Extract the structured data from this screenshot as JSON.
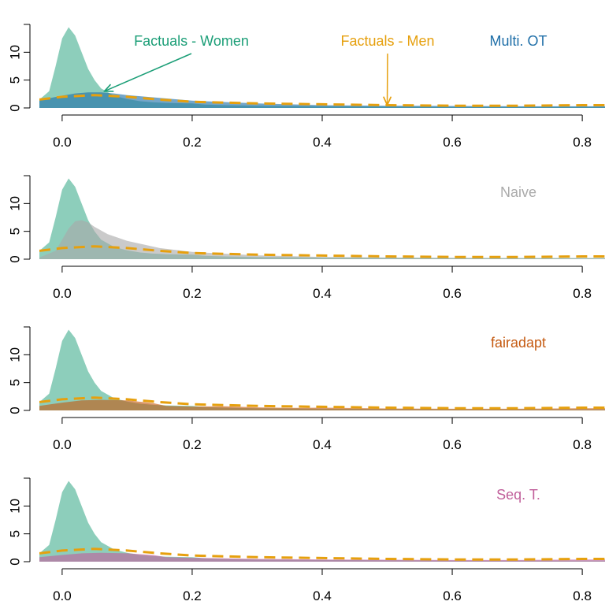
{
  "colors": {
    "women": "#1b9e77",
    "men": "#e6a00e",
    "multi_ot": "#1f6fa8",
    "naive": "#aaaaaa",
    "fairadapt": "#c55a11",
    "seq_t": "#c1609b"
  },
  "chart_data": [
    {
      "type": "area",
      "method_label": "Multi. OT",
      "method_color": "#1f6fa8",
      "x_ticks": [
        "0.0",
        "0.2",
        "0.4",
        "0.6",
        "0.8"
      ],
      "y_ticks": [
        "0",
        "5",
        "10"
      ],
      "xlim": [
        -0.035,
        0.835
      ],
      "ylim": [
        0,
        15
      ],
      "annotations": [
        {
          "text": "Factuals - Women",
          "color": "#1b9e77",
          "target": [
            0.065,
            3
          ]
        },
        {
          "text": "Factuals - Men",
          "color": "#e6a00e",
          "target": [
            0.5,
            0.5
          ]
        }
      ],
      "series": [
        {
          "role": "factual_women",
          "x": [
            -0.035,
            -0.02,
            -0.01,
            0.0,
            0.01,
            0.02,
            0.03,
            0.04,
            0.05,
            0.06,
            0.08,
            0.1,
            0.12,
            0.14,
            0.16,
            0.18,
            0.2,
            0.22,
            0.25,
            0.3,
            0.4,
            0.5,
            0.6,
            0.7,
            0.8,
            0.835
          ],
          "y": [
            1.5,
            3.0,
            7.5,
            12.5,
            14.5,
            13.0,
            10.0,
            7.0,
            5.0,
            3.5,
            2.2,
            1.6,
            1.2,
            1.0,
            0.9,
            0.85,
            0.8,
            0.6,
            0.5,
            0.4,
            0.3,
            0.25,
            0.2,
            0.2,
            0.2,
            0.2
          ]
        },
        {
          "role": "factual_men",
          "x": [
            -0.035,
            0.0,
            0.05,
            0.1,
            0.15,
            0.2,
            0.3,
            0.4,
            0.5,
            0.6,
            0.7,
            0.8,
            0.835
          ],
          "y": [
            1.5,
            2.0,
            2.3,
            2.0,
            1.5,
            1.1,
            0.8,
            0.65,
            0.5,
            0.4,
            0.4,
            0.5,
            0.5
          ]
        },
        {
          "role": "counterfactual",
          "x": [
            -0.035,
            0.0,
            0.02,
            0.04,
            0.06,
            0.08,
            0.1,
            0.15,
            0.2,
            0.3,
            0.4,
            0.5,
            0.6,
            0.7,
            0.8,
            0.835
          ],
          "y": [
            1.4,
            2.2,
            2.6,
            2.8,
            2.8,
            2.6,
            2.3,
            1.8,
            1.3,
            0.8,
            0.5,
            0.4,
            0.35,
            0.3,
            0.3,
            0.3
          ]
        }
      ]
    },
    {
      "type": "area",
      "method_label": "Naive",
      "method_color": "#aaaaaa",
      "x_ticks": [
        "0.0",
        "0.2",
        "0.4",
        "0.6",
        "0.8"
      ],
      "y_ticks": [
        "0",
        "5",
        "10"
      ],
      "xlim": [
        -0.035,
        0.835
      ],
      "ylim": [
        0,
        15
      ],
      "series": [
        {
          "role": "factual_women",
          "x": [
            -0.035,
            -0.02,
            -0.01,
            0.0,
            0.01,
            0.02,
            0.03,
            0.04,
            0.05,
            0.06,
            0.08,
            0.1,
            0.12,
            0.14,
            0.16,
            0.18,
            0.2,
            0.22,
            0.25,
            0.3,
            0.4,
            0.5,
            0.6,
            0.7,
            0.8,
            0.835
          ],
          "y": [
            1.5,
            3.0,
            7.5,
            12.5,
            14.5,
            13.0,
            10.0,
            7.0,
            5.0,
            3.5,
            2.2,
            1.6,
            1.2,
            1.0,
            0.9,
            0.85,
            0.8,
            0.6,
            0.5,
            0.4,
            0.3,
            0.25,
            0.2,
            0.2,
            0.2,
            0.2
          ]
        },
        {
          "role": "factual_men",
          "x": [
            -0.035,
            0.0,
            0.05,
            0.1,
            0.15,
            0.2,
            0.3,
            0.4,
            0.5,
            0.6,
            0.7,
            0.8,
            0.835
          ],
          "y": [
            1.5,
            2.0,
            2.3,
            2.0,
            1.5,
            1.1,
            0.8,
            0.65,
            0.5,
            0.4,
            0.4,
            0.5,
            0.5
          ]
        },
        {
          "role": "counterfactual",
          "x": [
            -0.035,
            -0.01,
            0.0,
            0.01,
            0.02,
            0.03,
            0.04,
            0.05,
            0.07,
            0.1,
            0.15,
            0.2,
            0.3,
            0.4,
            0.5,
            0.6,
            0.7,
            0.8,
            0.835
          ],
          "y": [
            0.3,
            1.5,
            3.5,
            5.5,
            6.8,
            7.0,
            6.6,
            5.8,
            4.5,
            3.3,
            2.0,
            1.3,
            0.7,
            0.4,
            0.3,
            0.25,
            0.2,
            0.2,
            0.2
          ]
        }
      ]
    },
    {
      "type": "area",
      "method_label": "fairadapt",
      "method_color": "#c55a11",
      "x_ticks": [
        "0.0",
        "0.2",
        "0.4",
        "0.6",
        "0.8"
      ],
      "y_ticks": [
        "0",
        "5",
        "10"
      ],
      "xlim": [
        -0.035,
        0.835
      ],
      "ylim": [
        0,
        15
      ],
      "series": [
        {
          "role": "factual_women",
          "x": [
            -0.035,
            -0.02,
            -0.01,
            0.0,
            0.01,
            0.02,
            0.03,
            0.04,
            0.05,
            0.06,
            0.08,
            0.1,
            0.12,
            0.14,
            0.16,
            0.18,
            0.2,
            0.22,
            0.25,
            0.3,
            0.4,
            0.5,
            0.6,
            0.7,
            0.8,
            0.835
          ],
          "y": [
            1.5,
            3.0,
            7.5,
            12.5,
            14.5,
            13.0,
            10.0,
            7.0,
            5.0,
            3.5,
            2.2,
            1.6,
            1.2,
            1.0,
            0.9,
            0.85,
            0.8,
            0.6,
            0.5,
            0.4,
            0.3,
            0.25,
            0.2,
            0.2,
            0.2,
            0.2
          ]
        },
        {
          "role": "factual_men",
          "x": [
            -0.035,
            0.0,
            0.05,
            0.1,
            0.15,
            0.2,
            0.3,
            0.4,
            0.5,
            0.6,
            0.7,
            0.8,
            0.835
          ],
          "y": [
            1.5,
            2.0,
            2.3,
            2.0,
            1.5,
            1.1,
            0.8,
            0.65,
            0.5,
            0.4,
            0.4,
            0.5,
            0.5
          ]
        },
        {
          "role": "counterfactual",
          "x": [
            -0.035,
            0.0,
            0.03,
            0.06,
            0.1,
            0.14,
            0.16,
            0.2,
            0.25,
            0.3,
            0.35,
            0.4,
            0.5,
            0.6,
            0.7,
            0.8,
            0.835
          ],
          "y": [
            0.8,
            1.4,
            1.8,
            1.9,
            1.8,
            1.3,
            0.8,
            0.7,
            0.75,
            0.55,
            0.45,
            0.5,
            0.35,
            0.3,
            0.3,
            0.4,
            0.4
          ]
        }
      ]
    },
    {
      "type": "area",
      "method_label": "Seq. T.",
      "method_color": "#c1609b",
      "x_ticks": [
        "0.0",
        "0.2",
        "0.4",
        "0.6",
        "0.8"
      ],
      "y_ticks": [
        "0",
        "5",
        "10"
      ],
      "xlim": [
        -0.035,
        0.835
      ],
      "ylim": [
        0,
        15
      ],
      "series": [
        {
          "role": "factual_women",
          "x": [
            -0.035,
            -0.02,
            -0.01,
            0.0,
            0.01,
            0.02,
            0.03,
            0.04,
            0.05,
            0.06,
            0.08,
            0.1,
            0.12,
            0.14,
            0.16,
            0.18,
            0.2,
            0.22,
            0.25,
            0.3,
            0.4,
            0.5,
            0.6,
            0.7,
            0.8,
            0.835
          ],
          "y": [
            1.5,
            3.0,
            7.5,
            12.5,
            14.5,
            13.0,
            10.0,
            7.0,
            5.0,
            3.5,
            2.2,
            1.6,
            1.2,
            1.0,
            0.9,
            0.85,
            0.8,
            0.6,
            0.5,
            0.4,
            0.3,
            0.25,
            0.2,
            0.2,
            0.2,
            0.2
          ]
        },
        {
          "role": "factual_men",
          "x": [
            -0.035,
            0.0,
            0.05,
            0.1,
            0.15,
            0.2,
            0.3,
            0.4,
            0.5,
            0.6,
            0.7,
            0.8,
            0.835
          ],
          "y": [
            1.5,
            2.0,
            2.3,
            2.0,
            1.5,
            1.1,
            0.8,
            0.65,
            0.5,
            0.4,
            0.4,
            0.5,
            0.5
          ]
        },
        {
          "role": "counterfactual",
          "x": [
            -0.035,
            0.0,
            0.03,
            0.06,
            0.1,
            0.14,
            0.16,
            0.2,
            0.25,
            0.3,
            0.35,
            0.4,
            0.5,
            0.6,
            0.7,
            0.8,
            0.835
          ],
          "y": [
            0.8,
            1.2,
            1.5,
            1.6,
            1.5,
            1.2,
            0.8,
            0.7,
            0.6,
            0.5,
            0.45,
            0.4,
            0.35,
            0.3,
            0.3,
            0.4,
            0.4
          ]
        }
      ]
    }
  ]
}
